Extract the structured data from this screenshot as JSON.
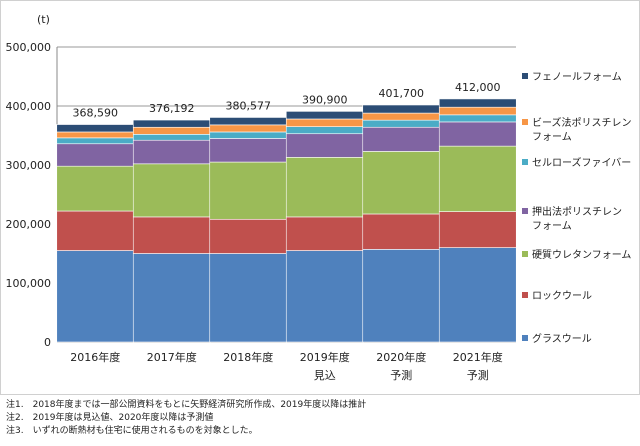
{
  "chart_data": {
    "type": "bar",
    "stacked": true,
    "unit": "(t)",
    "ylim": [
      0,
      500000
    ],
    "yticks": [
      "0",
      "100,000",
      "200,000",
      "300,000",
      "400,000",
      "500,000"
    ],
    "grid": true,
    "legend_position": "right",
    "categories": [
      {
        "label": "2016年度",
        "sub": ""
      },
      {
        "label": "2017年度",
        "sub": ""
      },
      {
        "label": "2018年度",
        "sub": ""
      },
      {
        "label": "2019年度",
        "sub": "見込"
      },
      {
        "label": "2020年度",
        "sub": "予測"
      },
      {
        "label": "2021年度",
        "sub": "予測"
      }
    ],
    "totals": [
      "368,590",
      "376,192",
      "380,577",
      "390,900",
      "401,700",
      "412,000"
    ],
    "total_values": [
      368590,
      376192,
      380577,
      390900,
      401700,
      412000
    ],
    "series": [
      {
        "name": [
          "グラスウール"
        ],
        "color": "#4f81bd",
        "values": [
          155000,
          150000,
          150000,
          155000,
          157000,
          160000
        ]
      },
      {
        "name": [
          "ロックウール"
        ],
        "color": "#c0504d",
        "values": [
          67000,
          62000,
          58000,
          57000,
          60000,
          61000
        ]
      },
      {
        "name": [
          "硬質ウレタンフォーム"
        ],
        "color": "#9bbb59",
        "values": [
          76000,
          90000,
          97000,
          101000,
          106000,
          111000
        ]
      },
      {
        "name": [
          "押出法ポリスチレン",
          "フォーム"
        ],
        "color": "#8064a2",
        "values": [
          38000,
          40000,
          40000,
          40000,
          41000,
          41000
        ]
      },
      {
        "name": [
          "セルローズファイバー"
        ],
        "color": "#4bacc6",
        "values": [
          10000,
          10000,
          11000,
          12000,
          12000,
          12000
        ]
      },
      {
        "name": [
          "ビーズ法ポリスチレン",
          "フォーム"
        ],
        "color": "#f79646",
        "values": [
          10000,
          12000,
          12000,
          13000,
          12000,
          13000
        ]
      },
      {
        "name": [
          "フェノールフォーム"
        ],
        "color": "#2c4d75",
        "values": [
          12590,
          12192,
          12577,
          12900,
          13700,
          14000
        ]
      }
    ]
  },
  "notes": [
    "注1.　2018年度までは一部公開資料をもとに矢野経済研究所作成、2019年度以降は推計",
    "注2.　2019年度は見込値、2020年度以降は予測値",
    "注3.　いずれの断熱材も住宅に使用されるものを対象とした。"
  ]
}
